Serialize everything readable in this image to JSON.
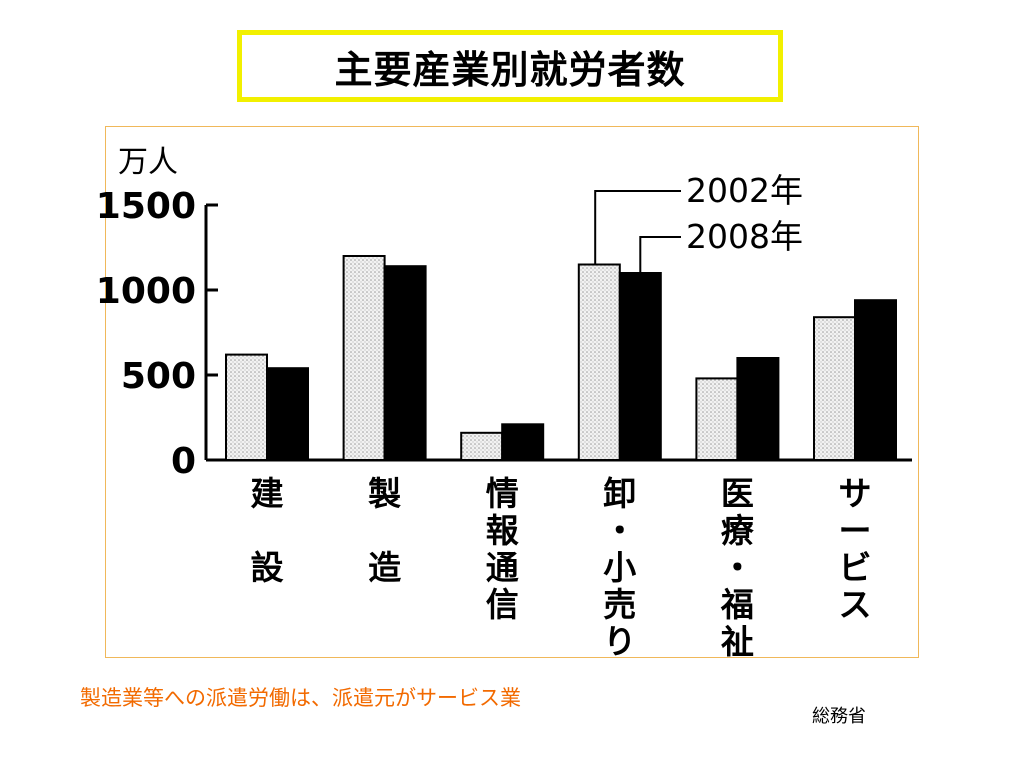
{
  "title": "主要産業別就労者数",
  "footnote": "製造業等への派遣労働は、派遣元がサービス業",
  "source": "総務省",
  "chart_data": {
    "type": "bar",
    "ylabel": "万人",
    "ylim": [
      0,
      1500
    ],
    "yticks": [
      "0",
      "500",
      "1000",
      "1500"
    ],
    "categories": [
      "建設",
      "製造",
      "情報通信",
      "卸・小売り",
      "医療・福祉",
      "サービス"
    ],
    "category_lines": [
      [
        "建",
        "",
        "設"
      ],
      [
        "製",
        "",
        "造"
      ],
      [
        "情",
        "報",
        "通",
        "信"
      ],
      [
        "卸",
        "・",
        "小",
        "売",
        "り"
      ],
      [
        "医",
        "療",
        "・",
        "福",
        "祉"
      ],
      [
        "サ",
        "ー",
        "ビ",
        "ス"
      ]
    ],
    "series": [
      {
        "name": "2002年",
        "values": [
          620,
          1200,
          160,
          1150,
          480,
          840
        ],
        "color": "#e6e6e6"
      },
      {
        "name": "2008年",
        "values": [
          540,
          1140,
          210,
          1100,
          600,
          940
        ],
        "color": "#000000"
      }
    ]
  }
}
